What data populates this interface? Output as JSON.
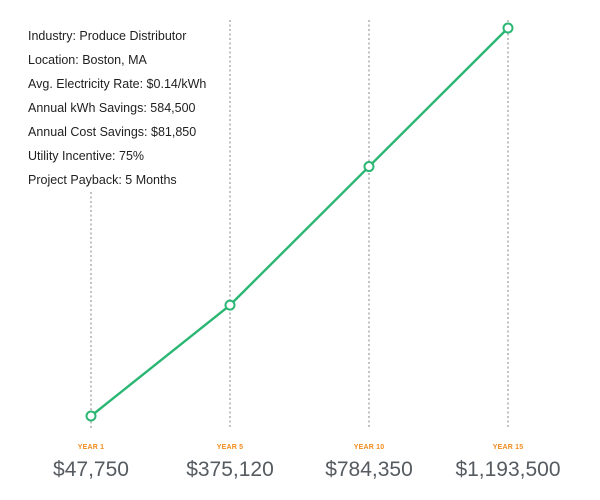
{
  "info": [
    "Industry: Produce Distributor",
    "Location: Boston, MA",
    "Avg. Electricity Rate: $0.14/kWh",
    "Annual kWh Savings: 584,500",
    "Annual Cost Savings: $81,850",
    "Utility Incentive: 75%",
    "Project Payback: 5 Months"
  ],
  "chart_data": {
    "type": "line",
    "categories": [
      "YEAR 1",
      "YEAR 5",
      "YEAR 10",
      "YEAR 15"
    ],
    "values": [
      47750,
      375120,
      784350,
      1193500
    ],
    "value_labels": [
      "$47,750",
      "$375,120",
      "$784,350",
      "$1,193,500"
    ],
    "title": "",
    "xlabel": "",
    "ylabel": "",
    "grid": "vertical dotted lines at each category",
    "legend": "none"
  },
  "colors": {
    "line": "#2bb673",
    "year_label": "#f08a1c",
    "value_label": "#555b60",
    "gridline": "#9a9a9a",
    "text": "#1f1f1f"
  }
}
